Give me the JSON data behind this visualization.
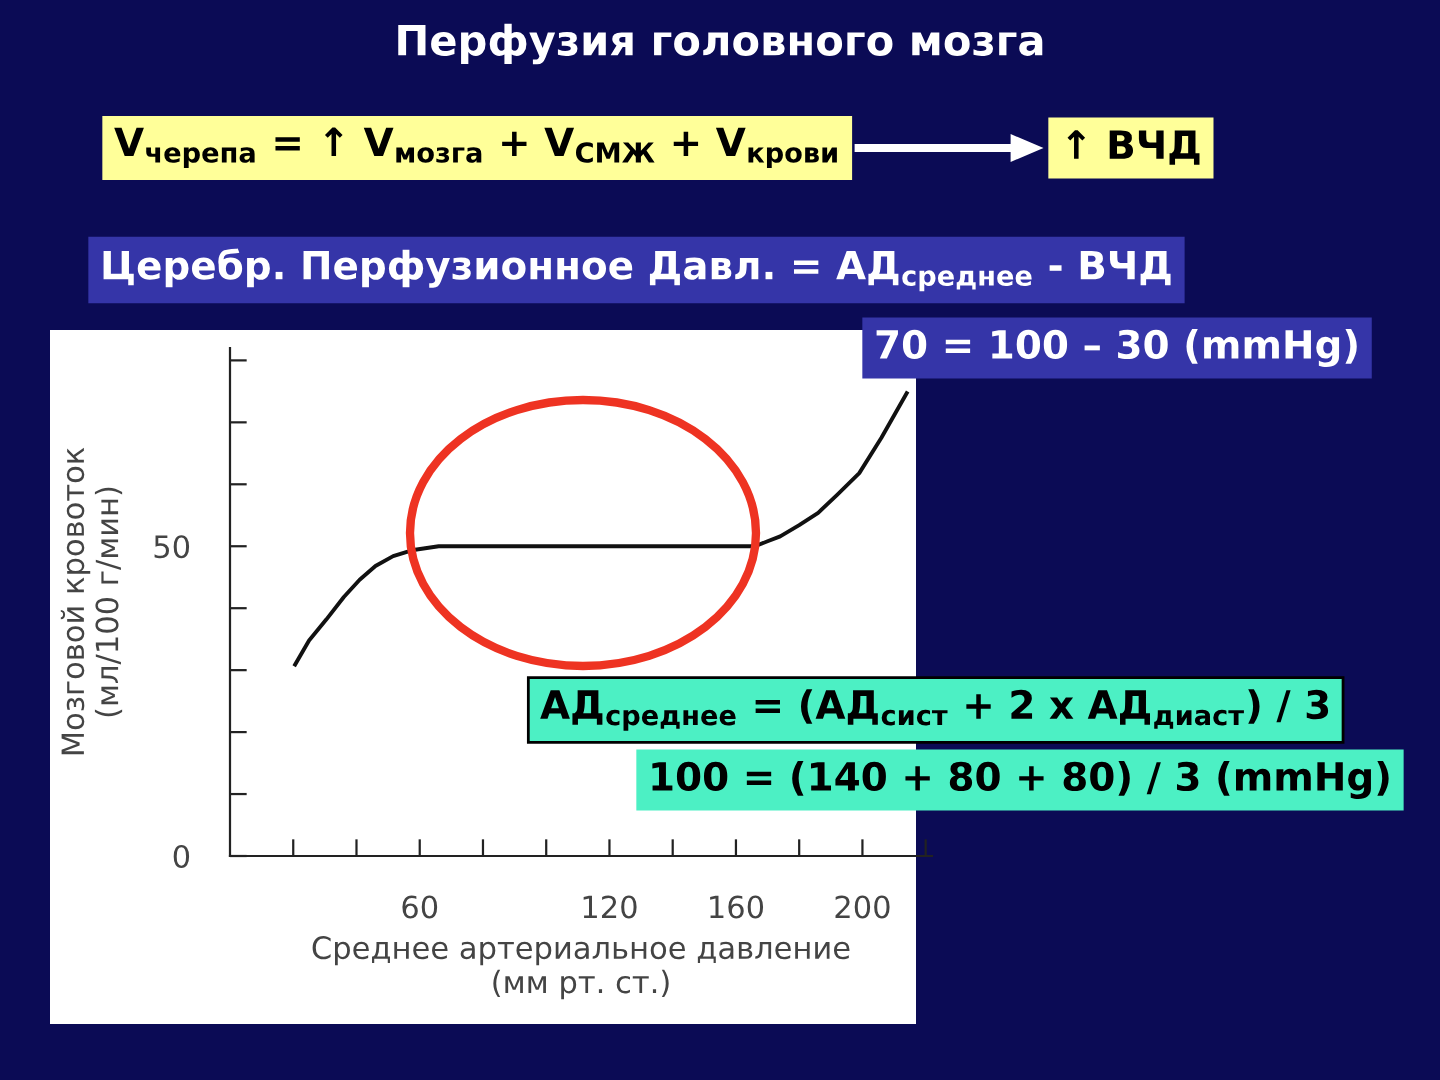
{
  "chart_data": {
    "type": "line",
    "title": "Перфузия головного мозга",
    "xlabel": "Среднее артериальное давление\n(мм рт. ст.)",
    "ylabel": "Мозговой кровоток\n(мл/100 г/мин)",
    "xlim": [
      0,
      222
    ],
    "ylim": [
      0,
      82
    ],
    "xticks": [
      {
        "value": 20,
        "label": null
      },
      {
        "value": 40,
        "label": null
      },
      60,
      {
        "value": 80,
        "label": null
      },
      {
        "value": 100,
        "label": null
      },
      120,
      {
        "value": 140,
        "label": null
      },
      160,
      {
        "value": 180,
        "label": null
      },
      200,
      {
        "value": 220,
        "label": null
      }
    ],
    "yticks": [
      0,
      {
        "value": 10,
        "label": null
      },
      {
        "value": 20,
        "label": null
      },
      {
        "value": 30,
        "label": null
      },
      {
        "value": 40,
        "label": null
      },
      50,
      {
        "value": 60,
        "label": null
      },
      {
        "value": 70,
        "label": null
      },
      {
        "value": 80,
        "label": null
      }
    ],
    "series": [
      {
        "color": "#111111",
        "x": [
          20.6,
          25,
          30.5,
          36,
          41,
          46,
          51.6,
          58,
          66,
          100,
          140,
          166,
          170,
          174,
          180,
          186,
          192,
          199,
          206,
          214
        ],
        "values": [
          30.9,
          34.8,
          38.2,
          41.8,
          44.6,
          46.8,
          48.4,
          49.4,
          50,
          50,
          50,
          50,
          50.8,
          51.6,
          53.4,
          55.4,
          58.3,
          61.8,
          67.5,
          74.7
        ]
      }
    ],
    "marker": "none",
    "line_style": "solid",
    "grid": false,
    "legend": false,
    "annotations": [
      "V$_{черепа}$ = ↑ V$_{мозга}$ + V$_{СМЖ}$ + V$_{крови}$",
      "↑ ВЧД",
      "Церебр. Перфузионное Давл. = АД$_{среднее}$ - ВЧД",
      "70 = 100 – 30 (mmHg)",
      "АД$_{среднее}$ = (АД$_{сист}$ + 2 x АД$_{диаст}$) / 3",
      "100 = (140 + 80 + 80) / 3 (mmHg)"
    ]
  }
}
